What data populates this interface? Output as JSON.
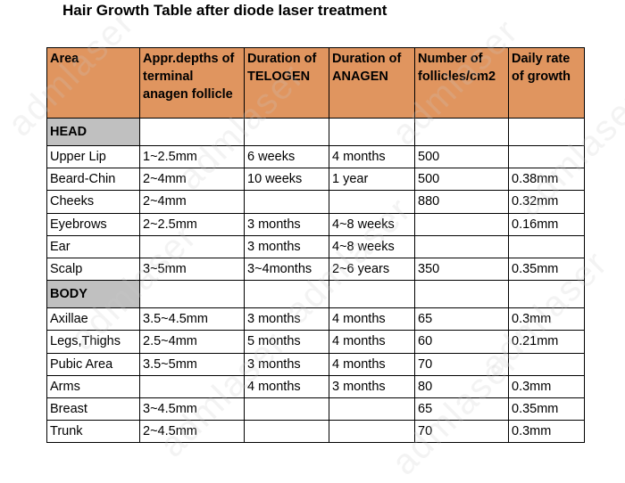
{
  "title": "Hair Growth Table after diode laser treatment",
  "watermark_text": "admlaser",
  "colors": {
    "header_bg": "#e0955f",
    "section_bg": "#c0c0c0"
  },
  "table": {
    "headers": [
      "Area",
      "Appr.depths of terminal anagen follicle",
      "Duration of TELOGEN",
      "Duration of ANAGEN",
      "Number of follicles/cm2",
      "Daily rate of growth"
    ],
    "sections": [
      {
        "name": "HEAD",
        "rows": [
          [
            "Upper Lip",
            "1~2.5mm",
            "6 weeks",
            "4 months",
            "500",
            ""
          ],
          [
            "Beard-Chin",
            "2~4mm",
            "10 weeks",
            "1 year",
            "500",
            "0.38mm"
          ],
          [
            "Cheeks",
            "2~4mm",
            "",
            "",
            "880",
            "0.32mm"
          ],
          [
            "Eyebrows",
            "2~2.5mm",
            "3 months",
            "4~8 weeks",
            "",
            "0.16mm"
          ],
          [
            "Ear",
            "",
            "3 months",
            "4~8 weeks",
            "",
            ""
          ],
          [
            "Scalp",
            "3~5mm",
            "3~4months",
            "2~6 years",
            "350",
            "0.35mm"
          ]
        ]
      },
      {
        "name": "BODY",
        "rows": [
          [
            "Axillae",
            "3.5~4.5mm",
            "3 months",
            "4 months",
            "65",
            "0.3mm"
          ],
          [
            "Legs,Thighs",
            "2.5~4mm",
            "5 months",
            "4 months",
            "60",
            "0.21mm"
          ],
          [
            "Pubic Area",
            "3.5~5mm",
            "3 months",
            "4 months",
            "70",
            ""
          ],
          [
            "Arms",
            "",
            "4 months",
            "3 months",
            "80",
            "0.3mm"
          ],
          [
            "Breast",
            "3~4.5mm",
            "",
            "",
            "65",
            "0.35mm"
          ],
          [
            "Trunk",
            "2~4.5mm",
            "",
            "",
            "70",
            "0.3mm"
          ]
        ]
      }
    ]
  }
}
